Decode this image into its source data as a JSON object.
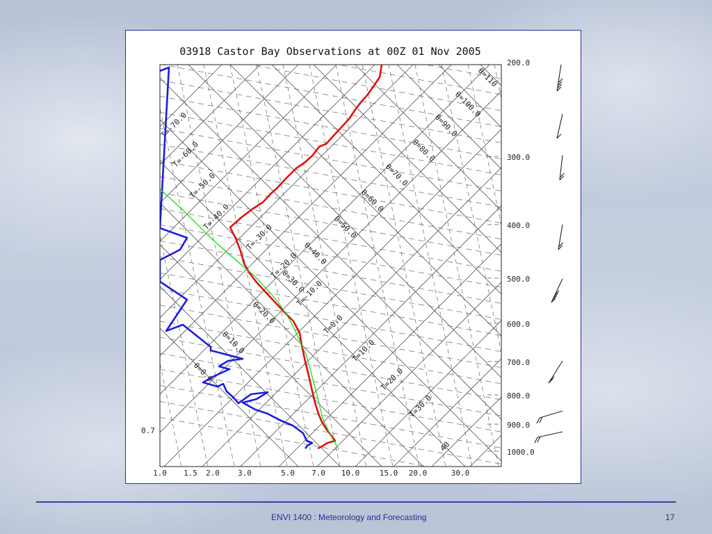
{
  "slide": {
    "footer_title": "ENVI 1400 : Meteorology and Forecasting",
    "page_number": "17"
  },
  "chart_data": {
    "type": "line",
    "title": "03918 Castor Bay Observations at 00Z 01 Nov 2005",
    "pressure_levels": [
      "200.0",
      "300.0",
      "400.0",
      "500.0",
      "600.0",
      "700.0",
      "800.0",
      "900.0",
      "1000.0"
    ],
    "x_ticks": [
      "1.0",
      "1.5",
      "2.0",
      "3.0",
      "5.0",
      "7.0",
      "10.0",
      "15.0",
      "20.0",
      "30.0"
    ],
    "left_annotation": "0.7",
    "isotherm_labels": [
      "T=-70.0",
      "T=-60.0",
      "T=-50.0",
      "T=-40.0",
      "T=-30.0",
      "T=-20.0",
      "T=-10.0",
      "T=0.0",
      "T=10.0",
      "T=20.0",
      "T=30.0",
      "40"
    ],
    "theta_labels": [
      "θ=110",
      "θ=100.0",
      "θ=90.0",
      "θ=80.0",
      "θ=70.0",
      "θ=60.0",
      "θ=50.0",
      "θ=40.0",
      "θ=30.0",
      "θ=20.0",
      "θ=10.0",
      "θ=0.0"
    ],
    "series": [
      {
        "name": "",
        "color": "#e01010",
        "x": [
          548,
          545,
          537,
          527,
          518,
          509,
          501,
          490,
          477,
          468,
          458,
          449,
          437,
          425,
          414,
          410,
          398,
          388,
          377,
          363,
          347,
          330,
          338,
          345,
          350,
          358,
          368,
          380,
          393,
          407,
          421,
          430,
          433,
          438,
          443,
          447,
          452,
          457,
          462,
          469,
          476,
          481,
          470,
          462,
          456
        ],
        "y": [
          92,
          110,
          122,
          136,
          146,
          158,
          170,
          182,
          196,
          206,
          210,
          222,
          233,
          241,
          252,
          256,
          269,
          278,
          290,
          299,
          311,
          326,
          342,
          360,
          378,
          392,
          405,
          418,
          432,
          447,
          461,
          478,
          496,
          519,
          539,
          557,
          578,
          594,
          606,
          617,
          626,
          633,
          636,
          641,
          644
        ]
      },
      {
        "name": "",
        "color": "#1d1ddc",
        "x": [
          229,
          242,
          229,
          268,
          258,
          229,
          229,
          268,
          238,
          262,
          302,
          302,
          348,
          327,
          314,
          329,
          307,
          291,
          312,
          320,
          325,
          334,
          342,
          360,
          384,
          368,
          348,
          366,
          384,
          401,
          420,
          435,
          440,
          448,
          441,
          438
        ],
        "y": [
          101,
          96,
          327,
          341,
          358,
          373,
          404,
          430,
          475,
          466,
          498,
          503,
          515,
          518,
          526,
          530,
          540,
          549,
          555,
          551,
          562,
          570,
          579,
          566,
          563,
          573,
          578,
          588,
          594,
          603,
          611,
          622,
          633,
          636,
          640,
          644
        ]
      },
      {
        "name": "",
        "color": "#12d312",
        "x": [
          229,
          262,
          286,
          302,
          322,
          344,
          364,
          382,
          397,
          411,
          422,
          431,
          440,
          448,
          456,
          463,
          475,
          486
        ],
        "y": [
          271,
          301,
          325,
          341,
          359,
          378,
          395,
          414,
          431,
          451,
          471,
          491,
          511,
          541,
          571,
          601,
          626,
          645
        ]
      }
    ],
    "wind_barbs": [
      {
        "y": 88
      },
      {
        "y": 162
      },
      {
        "y": 222
      },
      {
        "y": 320
      },
      {
        "y": 400
      },
      {
        "y": 520
      },
      {
        "y": 590
      },
      {
        "y": 620
      }
    ],
    "grid": true
  }
}
